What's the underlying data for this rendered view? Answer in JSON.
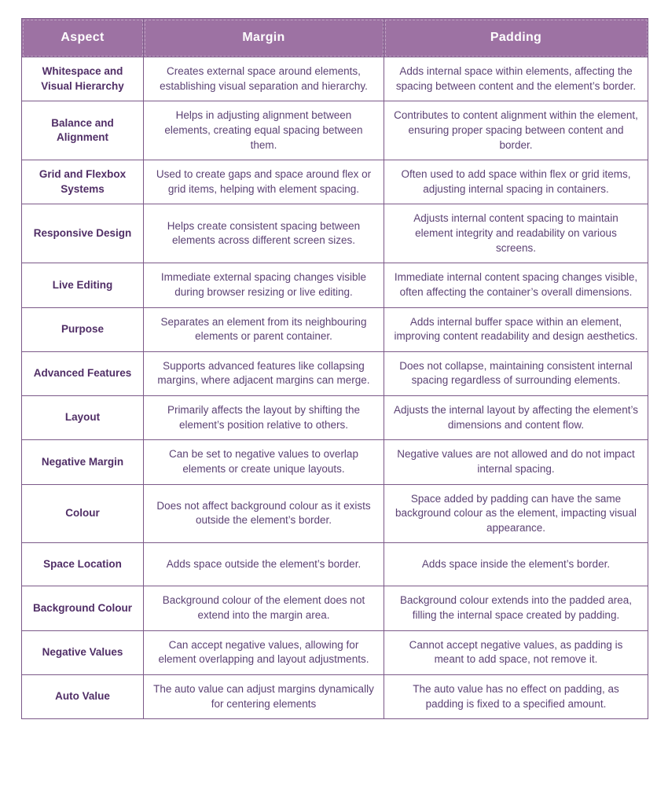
{
  "theme": {
    "page_bg": "#ffffff",
    "header_bg": "#9d72a3",
    "header_text": "#ffffff",
    "border_color": "#7b5988",
    "aspect_text": "#502e66",
    "body_text": "#5c4274"
  },
  "table": {
    "columns": [
      {
        "key": "aspect",
        "label": "Aspect"
      },
      {
        "key": "margin",
        "label": "Margin"
      },
      {
        "key": "padding",
        "label": "Padding"
      }
    ],
    "rows": [
      {
        "aspect": "Whitespace and Visual Hierarchy",
        "margin": "Creates external space around elements, establishing visual separation and hierarchy.",
        "padding": "Adds internal space within elements, affecting the spacing between content and the element’s border."
      },
      {
        "aspect": "Balance and Alignment",
        "margin": "Helps in adjusting alignment between elements, creating equal spacing between them.",
        "padding": "Contributes to content alignment within the element, ensuring proper spacing between content and border."
      },
      {
        "aspect": "Grid and Flexbox Systems",
        "margin": "Used to create gaps and space around flex or grid items, helping with element spacing.",
        "padding": "Often used to add space within flex or grid items, adjusting internal spacing in containers."
      },
      {
        "aspect": "Responsive Design",
        "margin": "Helps create consistent spacing between elements across different screen sizes.",
        "padding": "Adjusts internal content spacing to maintain element integrity and readability on various screens."
      },
      {
        "aspect": "Live Editing",
        "margin": "Immediate external spacing changes visible during browser resizing or live editing.",
        "padding": "Immediate internal content spacing changes visible, often affecting the container’s overall dimensions."
      },
      {
        "aspect": "Purpose",
        "margin": "Separates an element from its neighbouring elements or parent container.",
        "padding": "Adds internal buffer space within an element, improving content readability and design aesthetics."
      },
      {
        "aspect": "Advanced Features",
        "margin": "Supports advanced features like collapsing margins, where adjacent margins can merge.",
        "padding": "Does not collapse, maintaining consistent internal spacing regardless of surrounding elements."
      },
      {
        "aspect": "Layout",
        "margin": "Primarily affects the layout by shifting the element’s position relative to others.",
        "padding": "Adjusts the internal layout by affecting the element’s dimensions and content flow."
      },
      {
        "aspect": "Negative Margin",
        "margin": "Can be set to negative values to overlap elements or create unique layouts.",
        "padding": "Negative values are not allowed and do not impact internal spacing."
      },
      {
        "aspect": "Colour",
        "margin": "Does not affect background colour as it exists outside the element’s border.",
        "padding": "Space added by padding can have the same background colour as the element, impacting visual appearance."
      },
      {
        "aspect": "Space Location",
        "margin": "Adds space outside the element’s border.",
        "padding": "Adds space inside the element’s border."
      },
      {
        "aspect": "Background Colour",
        "margin": "Background colour of the element does not extend into the margin area.",
        "padding": "Background colour extends into the padded area, filling the internal space created by padding."
      },
      {
        "aspect": "Negative Values",
        "margin": "Can accept negative values, allowing for element overlapping and layout adjustments.",
        "padding": "Cannot accept negative values, as padding is meant to add space, not remove it."
      },
      {
        "aspect": "Auto Value",
        "margin": "The auto value can adjust margins dynamically for centering elements",
        "padding": "The auto value has no effect on padding, as padding is fixed to a specified amount."
      }
    ]
  }
}
